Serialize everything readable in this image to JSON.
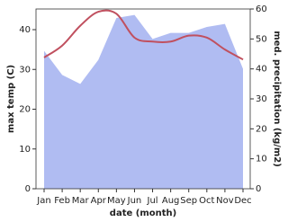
{
  "chart_data": {
    "type": "area-line",
    "x_label": "date (month)",
    "y_label": "max temp (C)",
    "y2_label": "med. precipitation (kg/m2)",
    "categories": [
      "Jan",
      "Feb",
      "Mar",
      "Apr",
      "May",
      "Jun",
      "Jul",
      "Aug",
      "Sep",
      "Oct",
      "Nov",
      "Dec"
    ],
    "series": [
      {
        "name": "max temp",
        "color": "#c0505f",
        "values": [
          33,
          36,
          41,
          44.5,
          44,
          38,
          37,
          37,
          38.5,
          38,
          35,
          32.5
        ]
      },
      {
        "name": "precipitation",
        "color": "#b0bcf2",
        "axis": "y2",
        "values": [
          46,
          38,
          35,
          43,
          57,
          58,
          50,
          52,
          52,
          54,
          55,
          40
        ]
      }
    ],
    "ylim": [
      0,
      45.2
    ],
    "yticks": [
      0,
      10,
      20,
      30,
      40
    ],
    "y2lim": [
      0,
      60
    ],
    "y2ticks": [
      0,
      10,
      20,
      30,
      40,
      50,
      60
    ]
  }
}
